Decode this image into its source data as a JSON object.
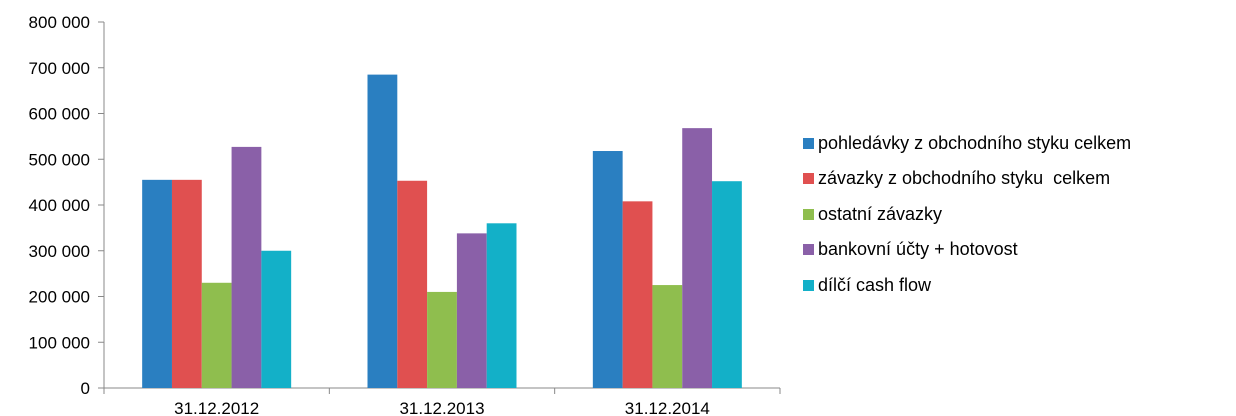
{
  "chart_data": {
    "type": "bar",
    "categories": [
      "31.12.2012",
      "31.12.2013",
      "31.12.2014"
    ],
    "series": [
      {
        "name": "pohledávky z obchodního styku celkem",
        "color": "#2a7fc1",
        "values": [
          455000,
          685000,
          518000
        ]
      },
      {
        "name": "závazky z obchodního styku  celkem",
        "color": "#e05050",
        "values": [
          455000,
          453000,
          408000
        ]
      },
      {
        "name": "ostatní závazky",
        "color": "#8fbe4e",
        "values": [
          230000,
          210000,
          225000
        ]
      },
      {
        "name": "bankovní účty + hotovost",
        "color": "#8a60a8",
        "values": [
          527000,
          338000,
          568000
        ]
      },
      {
        "name": "dílčí cash flow",
        "color": "#13b0c8",
        "values": [
          300000,
          360000,
          452000
        ]
      }
    ],
    "ylim": [
      0,
      800000
    ],
    "yticks": [
      0,
      100000,
      200000,
      300000,
      400000,
      500000,
      600000,
      700000,
      800000
    ],
    "ytick_labels": [
      "0",
      "100 000",
      "200 000",
      "300 000",
      "400 000",
      "500 000",
      "600 000",
      "700 000",
      "800 000"
    ],
    "grid": false,
    "legend_position": "right"
  }
}
